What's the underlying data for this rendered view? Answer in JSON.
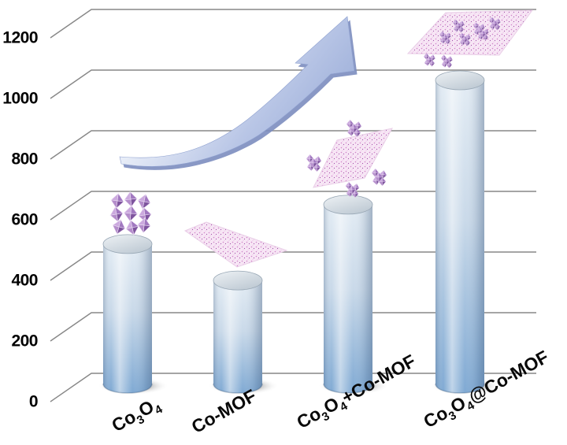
{
  "page": {
    "background": "#ffffff",
    "description": "3D cylinder bar chart comparing electrochemical performance of cobalt materials, with a rising trend arrow and crystal/nanosheet structure illustrations above each bar"
  },
  "chart_data": {
    "type": "bar",
    "bar_style": "3d-cylinder",
    "title": "",
    "xlabel": "",
    "ylabel": "",
    "categories": [
      "Co3O4",
      "Co-MOF",
      "Co3O4+Co-MOF",
      "Co3O4@Co-MOF"
    ],
    "categories_rich": [
      [
        {
          "t": "Co"
        },
        {
          "t": "3",
          "sub": true
        },
        {
          "t": "O"
        },
        {
          "t": "4",
          "sub": true
        }
      ],
      [
        {
          "t": "Co-MOF"
        }
      ],
      [
        {
          "t": "Co"
        },
        {
          "t": "3",
          "sub": true
        },
        {
          "t": "O"
        },
        {
          "t": "4",
          "sub": true
        },
        {
          "t": "+Co-MOF"
        }
      ],
      [
        {
          "t": "Co"
        },
        {
          "t": "3",
          "sub": true
        },
        {
          "t": "O"
        },
        {
          "t": "4",
          "sub": true
        },
        {
          "t": "@Co-MOF"
        }
      ]
    ],
    "values": [
      460,
      340,
      590,
      1000
    ],
    "ylim": [
      0,
      1200
    ],
    "y_ticks": [
      0,
      200,
      400,
      600,
      800,
      1000,
      1200
    ],
    "y_tick_labels": [
      "0",
      "200",
      "400",
      "600",
      "800",
      "1000",
      "1200"
    ],
    "grid": true,
    "legend": "none",
    "colors": {
      "cylinder_top": "#d9e0e6",
      "cylinder_light": "#e6eef5",
      "cylinder_dark": "#7fa9d3",
      "gridline": "#878787",
      "tick_text": "#000000"
    }
  },
  "annotations": {
    "trend_arrow": {
      "meaning": "performance increases from left to right",
      "direction": "up-right",
      "color_light": "#e9eef8",
      "color_mid": "#b9c6e6",
      "color_dark": "#7c8dbf"
    },
    "illustrations": [
      {
        "name": "co3o4-octahedra-crystal",
        "over_category": "Co3O4",
        "colors": [
          "#cba9de",
          "#a178c0",
          "#7e549e"
        ]
      },
      {
        "name": "co-mof-nanosheet",
        "over_category": "Co-MOF",
        "colors": [
          "#f7e6f5",
          "#d183c9"
        ]
      },
      {
        "name": "co3o4-particles-with-nanosheet",
        "over_category": "Co3O4+Co-MOF",
        "colors": [
          "#f7e6f5",
          "#a178c0"
        ]
      },
      {
        "name": "co3o4-anchored-on-nanosheet-composite",
        "over_category": "Co3O4@Co-MOF",
        "colors": [
          "#f7e6f5",
          "#a178c0"
        ]
      }
    ]
  }
}
